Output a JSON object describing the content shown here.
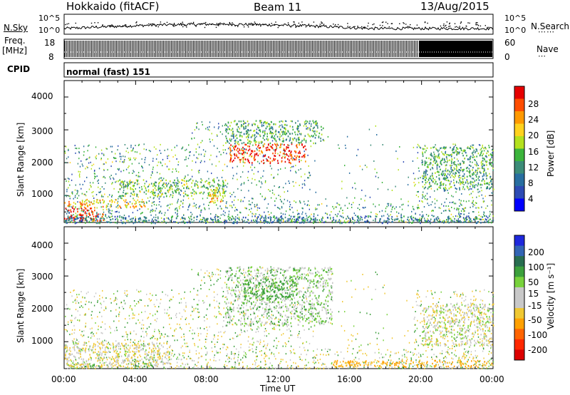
{
  "header": {
    "title": "Hokkaido (fitACF)",
    "beam": "Beam 11",
    "date": "13/Aug/2015"
  },
  "noise_panel": {
    "left_label": "N.Sky",
    "right_label": "N.Search",
    "left_ticks": [
      "10^5",
      "10^0"
    ],
    "right_ticks": [
      "10^5",
      "10^0"
    ]
  },
  "freq_panel": {
    "left_label_1": "Freq.",
    "left_label_2": "[MHz]",
    "right_label": "Nave",
    "left_ticks": [
      "18",
      "8"
    ],
    "right_ticks": [
      "60",
      "0"
    ]
  },
  "cpid_panel": {
    "left_label": "CPID",
    "text": "normal (fast) 151"
  },
  "axes": {
    "ylabel": "Slant Range [km]",
    "yticks": [
      "4000",
      "3000",
      "2000",
      "1000"
    ],
    "xticks": [
      "00:00",
      "04:00",
      "08:00",
      "12:00",
      "16:00",
      "20:00",
      "00:00"
    ],
    "xlabel": "Time UT"
  },
  "colorbars": {
    "power": {
      "label": "Power [dB]",
      "ticks": [
        "28",
        "24",
        "20",
        "16",
        "12",
        "8",
        "4"
      ],
      "colors": [
        "#e60000",
        "#ff4d00",
        "#ff9900",
        "#ffd21e",
        "#b4e11e",
        "#3cb43c",
        "#3c8c78",
        "#286ea0",
        "#2d4bb4",
        "#0000ff"
      ]
    },
    "velocity": {
      "label": "Velocity [m s⁻¹]",
      "ticks": [
        "200",
        "100",
        "50",
        "15",
        "-15",
        "-50",
        "-100",
        "-200"
      ],
      "colors": [
        "#1e28dc",
        "#3264b4",
        "#286e50",
        "#3ca03c",
        "#78d23c",
        "#c8c8c8",
        "#c8c8c8",
        "#f0c832",
        "#ffa000",
        "#ff6400",
        "#ff2800",
        "#dc0000"
      ]
    }
  },
  "chart_data": [
    {
      "type": "heatmap",
      "title": "Power [dB]",
      "xlabel": "Time UT",
      "ylabel": "Slant Range [km]",
      "xlim": [
        0,
        24
      ],
      "ylim": [
        180,
        4500
      ],
      "zlim": [
        0,
        30
      ],
      "regions": [
        {
          "t": [
            0,
            2.2
          ],
          "r": [
            250,
            650
          ],
          "power": 28
        },
        {
          "t": [
            0,
            4.5
          ],
          "r": [
            650,
            900
          ],
          "power": 22
        },
        {
          "t": [
            3,
            9
          ],
          "r": [
            1000,
            1500
          ],
          "power": 16
        },
        {
          "t": [
            8,
            9
          ],
          "r": [
            800,
            1200
          ],
          "power": 22
        },
        {
          "t": [
            9.2,
            13.5
          ],
          "r": [
            2000,
            2600
          ],
          "power": 28
        },
        {
          "t": [
            9,
            14.5
          ],
          "r": [
            2600,
            3300
          ],
          "power": 14
        },
        {
          "t": [
            20,
            24
          ],
          "r": [
            1200,
            2500
          ],
          "power": 14
        },
        {
          "t": [
            0,
            24
          ],
          "r": [
            180,
            400
          ],
          "power": 10
        }
      ]
    },
    {
      "type": "heatmap",
      "title": "Velocity [m s⁻¹]",
      "xlabel": "Time UT",
      "ylabel": "Slant Range [km]",
      "xlim": [
        0,
        24
      ],
      "ylim": [
        180,
        4500
      ],
      "zlim": [
        -250,
        250
      ],
      "regions": [
        {
          "t": [
            0,
            6
          ],
          "r": [
            250,
            1000
          ],
          "velocity": -10
        },
        {
          "t": [
            1,
            2
          ],
          "r": [
            250,
            350
          ],
          "velocity": 30
        },
        {
          "t": [
            4,
            5
          ],
          "r": [
            250,
            400
          ],
          "velocity": 30
        },
        {
          "t": [
            9,
            15
          ],
          "r": [
            1500,
            3300
          ],
          "velocity": 5
        },
        {
          "t": [
            10,
            13
          ],
          "r": [
            2300,
            2900
          ],
          "velocity": 30
        },
        {
          "t": [
            15,
            24
          ],
          "r": [
            250,
            450
          ],
          "velocity": -60
        },
        {
          "t": [
            20,
            24
          ],
          "r": [
            900,
            2200
          ],
          "velocity": -5
        }
      ]
    }
  ]
}
